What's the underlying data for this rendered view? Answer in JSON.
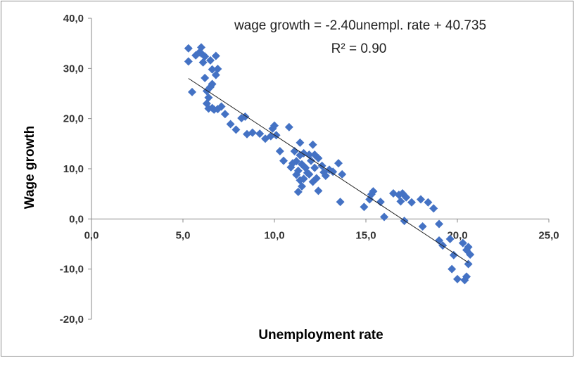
{
  "chart_data": {
    "type": "scatter",
    "title": "",
    "xlabel": "Unemployment rate",
    "ylabel": "Wage growth",
    "xlim": [
      0,
      25
    ],
    "ylim": [
      -20,
      40
    ],
    "x_ticks": [
      "0,0",
      "5,0",
      "10,0",
      "15,0",
      "20,0",
      "25,0"
    ],
    "y_ticks": [
      "40,0",
      "30,0",
      "20,0",
      "10,0",
      "0,0",
      "-10,0",
      "-20,0"
    ],
    "grid": false,
    "legend": "none",
    "marker_color": "#4472C4",
    "trendline": {
      "type": "linear",
      "slope": -2.4,
      "intercept": 40.735,
      "x_range": [
        5.3,
        20.6
      ],
      "equation_label": "wage growth = -2.40unempl. rate + 40.735",
      "r2_label": "R² = 0.90"
    },
    "points": [
      [
        5.3,
        34.0
      ],
      [
        5.3,
        31.4
      ],
      [
        5.5,
        25.3
      ],
      [
        5.7,
        32.6
      ],
      [
        5.9,
        33.2
      ],
      [
        6.0,
        34.2
      ],
      [
        6.0,
        33.0
      ],
      [
        6.1,
        31.2
      ],
      [
        6.2,
        32.4
      ],
      [
        6.2,
        28.1
      ],
      [
        6.3,
        25.5
      ],
      [
        6.3,
        23.0
      ],
      [
        6.4,
        24.2
      ],
      [
        6.4,
        22.0
      ],
      [
        6.5,
        26.3
      ],
      [
        6.5,
        31.6
      ],
      [
        6.6,
        29.8
      ],
      [
        6.6,
        26.9
      ],
      [
        6.6,
        22.1
      ],
      [
        6.7,
        21.8
      ],
      [
        6.8,
        32.5
      ],
      [
        6.8,
        28.7
      ],
      [
        6.9,
        29.9
      ],
      [
        6.9,
        21.9
      ],
      [
        7.1,
        22.4
      ],
      [
        7.3,
        20.9
      ],
      [
        7.6,
        18.9
      ],
      [
        7.9,
        17.8
      ],
      [
        8.2,
        20.1
      ],
      [
        8.4,
        20.4
      ],
      [
        8.5,
        16.9
      ],
      [
        8.8,
        17.2
      ],
      [
        9.2,
        17.0
      ],
      [
        9.5,
        16.0
      ],
      [
        9.8,
        16.5
      ],
      [
        9.9,
        18.0
      ],
      [
        10.0,
        18.6
      ],
      [
        10.1,
        16.7
      ],
      [
        10.3,
        13.5
      ],
      [
        10.5,
        11.6
      ],
      [
        10.8,
        18.3
      ],
      [
        10.9,
        10.3
      ],
      [
        11.0,
        11.1
      ],
      [
        11.1,
        13.5
      ],
      [
        11.2,
        8.8
      ],
      [
        11.2,
        11.5
      ],
      [
        11.3,
        9.6
      ],
      [
        11.3,
        5.4
      ],
      [
        11.4,
        15.2
      ],
      [
        11.4,
        12.7
      ],
      [
        11.4,
        7.7
      ],
      [
        11.5,
        10.9
      ],
      [
        11.5,
        6.5
      ],
      [
        11.6,
        8.0
      ],
      [
        11.6,
        13.1
      ],
      [
        11.7,
        10.2
      ],
      [
        11.8,
        9.2
      ],
      [
        11.9,
        12.8
      ],
      [
        11.9,
        8.9
      ],
      [
        12.0,
        11.6
      ],
      [
        12.1,
        14.8
      ],
      [
        12.1,
        7.4
      ],
      [
        12.2,
        10.2
      ],
      [
        12.2,
        12.8
      ],
      [
        12.3,
        8.1
      ],
      [
        12.4,
        12.1
      ],
      [
        12.4,
        5.6
      ],
      [
        12.6,
        10.6
      ],
      [
        12.7,
        9.3
      ],
      [
        12.8,
        8.6
      ],
      [
        13.0,
        9.8
      ],
      [
        13.2,
        9.4
      ],
      [
        13.5,
        11.1
      ],
      [
        13.6,
        3.4
      ],
      [
        13.7,
        8.9
      ],
      [
        14.9,
        2.4
      ],
      [
        15.2,
        3.9
      ],
      [
        15.3,
        4.9
      ],
      [
        15.4,
        5.5
      ],
      [
        15.8,
        3.4
      ],
      [
        16.0,
        0.4
      ],
      [
        16.5,
        5.1
      ],
      [
        16.8,
        4.8
      ],
      [
        16.9,
        3.5
      ],
      [
        17.0,
        5.1
      ],
      [
        17.1,
        -0.4
      ],
      [
        17.2,
        4.3
      ],
      [
        17.5,
        3.3
      ],
      [
        18.0,
        3.9
      ],
      [
        18.1,
        -1.5
      ],
      [
        18.4,
        3.3
      ],
      [
        18.7,
        2.1
      ],
      [
        19.0,
        -1.0
      ],
      [
        19.0,
        -4.3
      ],
      [
        19.2,
        -5.3
      ],
      [
        19.6,
        -4.0
      ],
      [
        19.7,
        -10.0
      ],
      [
        19.8,
        -7.2
      ],
      [
        20.0,
        -12.0
      ],
      [
        20.3,
        -4.8
      ],
      [
        20.4,
        -12.2
      ],
      [
        20.5,
        -6.2
      ],
      [
        20.5,
        -11.5
      ],
      [
        20.6,
        -5.6
      ],
      [
        20.6,
        -9.0
      ],
      [
        20.7,
        -7.1
      ]
    ]
  }
}
